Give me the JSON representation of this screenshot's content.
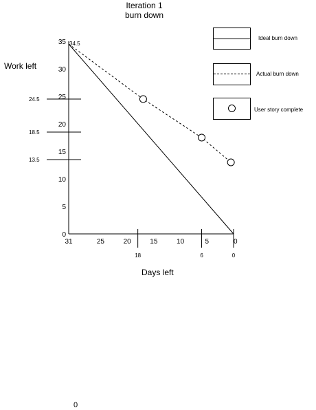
{
  "chart_data": {
    "type": "line",
    "title": [
      "Iteration 1",
      "burn down"
    ],
    "xlabel": "Days left",
    "ylabel": "Work left",
    "xlim": [
      31,
      0
    ],
    "ylim": [
      0,
      35
    ],
    "x_ticks": [
      31,
      25,
      20,
      15,
      10,
      5,
      0
    ],
    "y_ticks": [
      0,
      5,
      10,
      15,
      20,
      25,
      30,
      35
    ],
    "extra_x_ticks": [
      18,
      6,
      0
    ],
    "extra_y_ticks": [
      24.5,
      18.5,
      13.5
    ],
    "series": [
      {
        "name": "Ideal burn down",
        "style": "solid",
        "points": [
          {
            "x": 31,
            "y": 34.5
          },
          {
            "x": 0,
            "y": 0
          }
        ]
      },
      {
        "name": "Actual burn down",
        "style": "dashed",
        "points": [
          {
            "x": 31,
            "y": 34.5
          },
          {
            "x": 17,
            "y": 24.5
          },
          {
            "x": 6,
            "y": 17.5
          },
          {
            "x": 0.5,
            "y": 13
          }
        ]
      }
    ],
    "markers": {
      "name": "User story complete",
      "points": [
        {
          "x": 17,
          "y": 24.5
        },
        {
          "x": 6,
          "y": 17.5
        },
        {
          "x": 0.5,
          "y": 13
        }
      ]
    },
    "annotations": [
      {
        "text": "34.5",
        "x": 31,
        "y": 34.5
      }
    ],
    "legend": {
      "position": "top-right",
      "items": [
        {
          "label": "Ideal burn down",
          "icon": "solid-line"
        },
        {
          "label": "Actual burn down",
          "icon": "dashed-line"
        },
        {
          "label": "User story complete",
          "icon": "circle-marker"
        }
      ]
    },
    "grid": false
  },
  "footer_text": "0"
}
